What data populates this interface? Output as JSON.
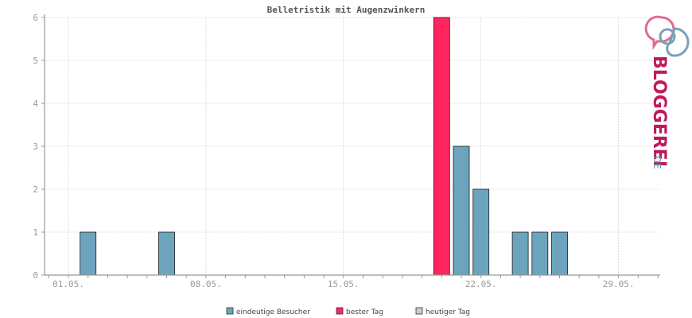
{
  "chart_data": {
    "type": "bar",
    "title": "Belletristik mit Augenzwinkern",
    "xlabel": "",
    "ylabel": "",
    "ylim": [
      0,
      6
    ],
    "yticks": [
      0,
      1,
      2,
      3,
      4,
      5,
      6
    ],
    "xlim": [
      0,
      31
    ],
    "xticks": [
      {
        "label": "01.05.",
        "day": 1
      },
      {
        "label": "08.05.",
        "day": 8
      },
      {
        "label": "15.05.",
        "day": 15
      },
      {
        "label": "22.05.",
        "day": 22
      },
      {
        "label": "29.05.",
        "day": 29
      }
    ],
    "grid": true,
    "legend_position": "bottom",
    "series": [
      {
        "name": "eindeutige Besucher",
        "color": "#6ca4be",
        "points": [
          {
            "day": 2,
            "value": 1
          },
          {
            "day": 6,
            "value": 1
          },
          {
            "day": 21,
            "value": 3
          },
          {
            "day": 22,
            "value": 2
          },
          {
            "day": 24,
            "value": 1
          },
          {
            "day": 25,
            "value": 1
          },
          {
            "day": 26,
            "value": 1
          }
        ]
      },
      {
        "name": "bester Tag",
        "color": "#ff2660",
        "points": [
          {
            "day": 20,
            "value": 6
          }
        ]
      },
      {
        "name": "heutiger Tag",
        "color": "#cccccc",
        "points": []
      }
    ]
  },
  "logo": {
    "text": "BLOGGEREI",
    "suffix": ".DE",
    "icon": "speech-bubbles-icon",
    "colors": {
      "primary": "#c2185b",
      "secondary": "#6a8fa8"
    }
  }
}
